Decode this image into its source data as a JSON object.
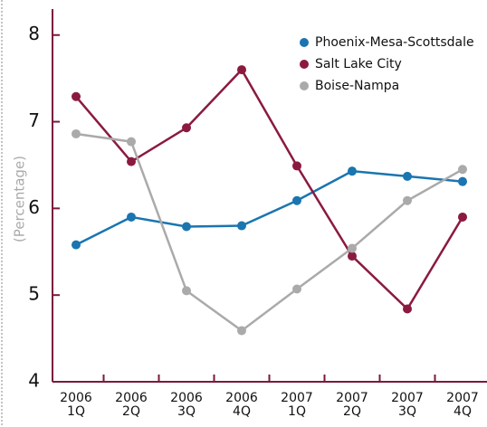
{
  "chart_data": {
    "type": "line",
    "y_label": "(Percentage)",
    "categories": [
      [
        "2006",
        "1Q"
      ],
      [
        "2006",
        "2Q"
      ],
      [
        "2006",
        "3Q"
      ],
      [
        "2006",
        "4Q"
      ],
      [
        "2007",
        "1Q"
      ],
      [
        "2007",
        "2Q"
      ],
      [
        "2007",
        "3Q"
      ],
      [
        "2007",
        "4Q"
      ]
    ],
    "series": [
      {
        "name": "Phoenix-Mesa-Scottsdale",
        "color": "#1a75b0",
        "values": [
          5.58,
          5.9,
          5.79,
          5.8,
          6.09,
          6.43,
          6.37,
          6.31
        ]
      },
      {
        "name": "Salt Lake City",
        "color": "#8b1a3e",
        "values": [
          7.29,
          6.54,
          6.93,
          7.6,
          6.49,
          5.45,
          4.84,
          5.9
        ]
      },
      {
        "name": "Boise-Nampa",
        "color": "#aaaaaa",
        "values": [
          6.86,
          6.77,
          5.05,
          4.59,
          5.07,
          5.54,
          6.09,
          6.45
        ]
      }
    ],
    "ylim": [
      4,
      8.3
    ],
    "yticks": [
      4,
      5,
      6,
      7,
      8
    ],
    "grid": false,
    "legend": "top-right"
  }
}
